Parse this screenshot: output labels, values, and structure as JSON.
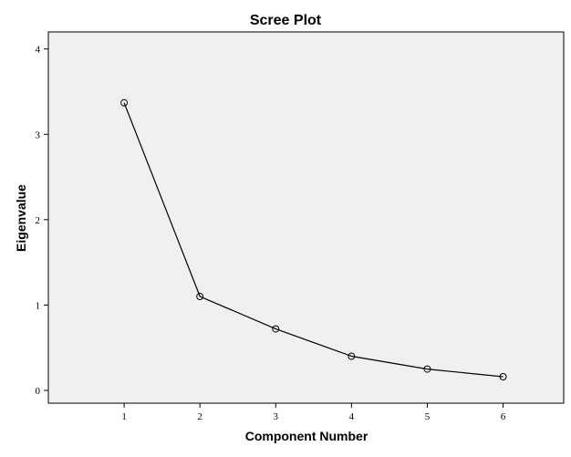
{
  "chart_data": {
    "type": "line",
    "title": "Scree Plot",
    "xlabel": "Component Number",
    "ylabel": "Eigenvalue",
    "x": [
      1,
      2,
      3,
      4,
      5,
      6
    ],
    "values": [
      3.37,
      1.1,
      0.72,
      0.4,
      0.25,
      0.16
    ],
    "xlim": [
      0,
      6.8
    ],
    "ylim": [
      -0.15,
      4.2
    ],
    "xticks": [
      "1",
      "2",
      "3",
      "4",
      "5",
      "6"
    ],
    "yticks": [
      "0",
      "1",
      "2",
      "3",
      "4"
    ],
    "grid": false,
    "legend": "none",
    "marker": "open-circle",
    "colors": {
      "line": "#000000",
      "plot_background": "#f0f0f0",
      "page_background": "#ffffff"
    }
  }
}
